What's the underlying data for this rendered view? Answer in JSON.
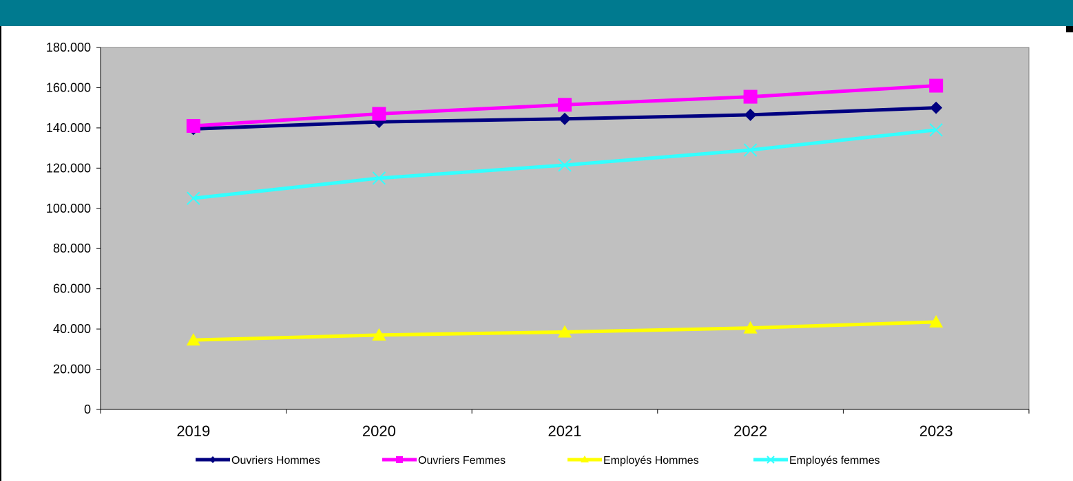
{
  "chart_data": {
    "type": "line",
    "categories": [
      "2019",
      "2020",
      "2021",
      "2022",
      "2023"
    ],
    "ylim": [
      0,
      180000
    ],
    "yticks": [
      {
        "value": 0,
        "label": "0"
      },
      {
        "value": 20000,
        "label": "20.000"
      },
      {
        "value": 40000,
        "label": "40.000"
      },
      {
        "value": 60000,
        "label": "60.000"
      },
      {
        "value": 80000,
        "label": "80.000"
      },
      {
        "value": 100000,
        "label": "100.000"
      },
      {
        "value": 120000,
        "label": "120.000"
      },
      {
        "value": 140000,
        "label": "140.000"
      },
      {
        "value": 160000,
        "label": "160.000"
      },
      {
        "value": 180000,
        "label": "180.000"
      }
    ],
    "grid": false,
    "plot_background": "#c0c0c0",
    "legend_position": "bottom",
    "series": [
      {
        "name": "Ouvriers Hommes",
        "color": "#000080",
        "marker": "diamond",
        "values": [
          139500,
          143000,
          144500,
          146500,
          150000
        ]
      },
      {
        "name": "Ouvriers Femmes",
        "color": "#ff00ff",
        "marker": "square",
        "values": [
          141000,
          147000,
          151500,
          155500,
          161000
        ]
      },
      {
        "name": "Employés Hommes",
        "color": "#ffff00",
        "marker": "triangle",
        "values": [
          34500,
          37000,
          38500,
          40500,
          43500
        ]
      },
      {
        "name": "Employés femmes",
        "color": "#33ffff",
        "marker": "x",
        "values": [
          105000,
          115000,
          121500,
          129000,
          139000
        ]
      }
    ]
  },
  "header": {
    "band_color": "#007a8f"
  }
}
